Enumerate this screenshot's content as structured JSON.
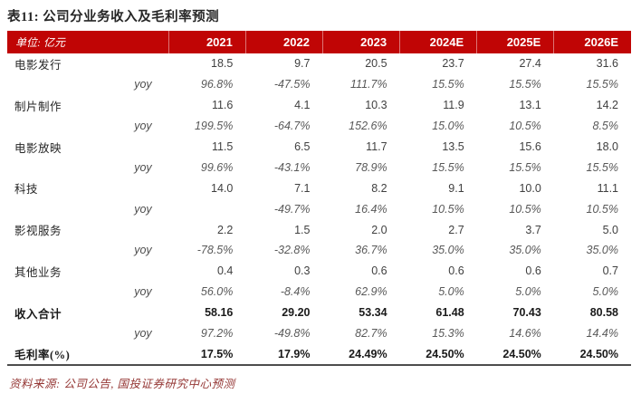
{
  "chart_data": {
    "type": "table",
    "title": "表11: 公司分业务收入及毛利率预测",
    "unit_label": "单位: 亿元",
    "columns": [
      "2021",
      "2022",
      "2023",
      "2024E",
      "2025E",
      "2026E"
    ],
    "rows": [
      {
        "label": "电影发行",
        "type": "value",
        "values": [
          "18.5",
          "9.7",
          "20.5",
          "23.7",
          "27.4",
          "31.6"
        ]
      },
      {
        "label": "yoy",
        "type": "yoy",
        "values": [
          "96.8%",
          "-47.5%",
          "111.7%",
          "15.5%",
          "15.5%",
          "15.5%"
        ]
      },
      {
        "label": "制片制作",
        "type": "value",
        "values": [
          "11.6",
          "4.1",
          "10.3",
          "11.9",
          "13.1",
          "14.2"
        ]
      },
      {
        "label": "yoy",
        "type": "yoy",
        "values": [
          "199.5%",
          "-64.7%",
          "152.6%",
          "15.0%",
          "10.5%",
          "8.5%"
        ]
      },
      {
        "label": "电影放映",
        "type": "value",
        "values": [
          "11.5",
          "6.5",
          "11.7",
          "13.5",
          "15.6",
          "18.0"
        ]
      },
      {
        "label": "yoy",
        "type": "yoy",
        "values": [
          "99.6%",
          "-43.1%",
          "78.9%",
          "15.5%",
          "15.5%",
          "15.5%"
        ]
      },
      {
        "label": "科技",
        "type": "value",
        "values": [
          "14.0",
          "7.1",
          "8.2",
          "9.1",
          "10.0",
          "11.1"
        ]
      },
      {
        "label": "yoy",
        "type": "yoy",
        "values": [
          "",
          "-49.7%",
          "16.4%",
          "10.5%",
          "10.5%",
          "10.5%"
        ]
      },
      {
        "label": "影视服务",
        "type": "value",
        "values": [
          "2.2",
          "1.5",
          "2.0",
          "2.7",
          "3.7",
          "5.0"
        ]
      },
      {
        "label": "yoy",
        "type": "yoy",
        "values": [
          "-78.5%",
          "-32.8%",
          "36.7%",
          "35.0%",
          "35.0%",
          "35.0%"
        ]
      },
      {
        "label": "其他业务",
        "type": "value",
        "values": [
          "0.4",
          "0.3",
          "0.6",
          "0.6",
          "0.6",
          "0.7"
        ]
      },
      {
        "label": "yoy",
        "type": "yoy",
        "values": [
          "56.0%",
          "-8.4%",
          "62.9%",
          "5.0%",
          "5.0%",
          "5.0%"
        ]
      },
      {
        "label": "收入合计",
        "type": "total",
        "values": [
          "58.16",
          "29.20",
          "53.34",
          "61.48",
          "70.43",
          "80.58"
        ]
      },
      {
        "label": "yoy",
        "type": "yoy",
        "values": [
          "97.2%",
          "-49.8%",
          "82.7%",
          "15.3%",
          "14.6%",
          "14.4%"
        ]
      },
      {
        "label": "毛利率(%)",
        "type": "total",
        "values": [
          "17.5%",
          "17.9%",
          "24.49%",
          "24.50%",
          "24.50%",
          "24.50%"
        ]
      }
    ],
    "source_note": "资料来源: 公司公告, 国投证券研究中心预测",
    "layout_hints": {
      "header_style": "red band, white text, year columns right-aligned",
      "yoy_rows_style": "italic gray",
      "total_rows": [
        "收入合计",
        "毛利率(%)"
      ],
      "bottom_border": true
    }
  },
  "colors": {
    "header_bg": "#c00505",
    "header_text": "#ffffff",
    "title_text": "#262626",
    "body_number_text": "#404040",
    "yoy_text": "#595959",
    "total_text": "#1a1a1a",
    "source_text": "#953735",
    "bottom_rule": "#4d4d4d"
  }
}
